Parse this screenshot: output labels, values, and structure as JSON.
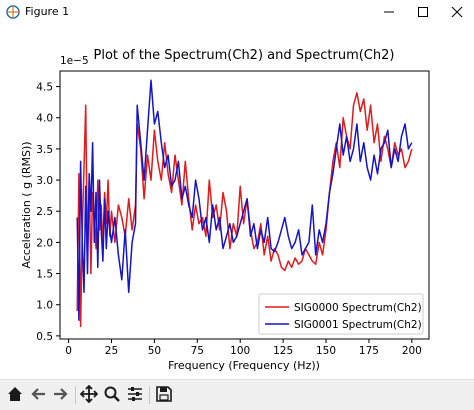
{
  "window": {
    "title": "Figure 1",
    "minimize_icon": "minimize-icon",
    "maximize_icon": "maximize-icon",
    "close_icon": "close-icon"
  },
  "toolbar": {
    "buttons": [
      {
        "name": "home-icon"
      },
      {
        "name": "back-arrow-icon"
      },
      {
        "name": "forward-arrow-icon"
      },
      {
        "name": "pan-icon"
      },
      {
        "name": "zoom-icon"
      },
      {
        "name": "configure-subplots-icon"
      },
      {
        "name": "save-icon"
      }
    ]
  },
  "chart_data": {
    "type": "line",
    "title": "Plot of the Spectrum(Ch2) and Spectrum(Ch2)",
    "xlabel": "Frequency (Frequency (Hz))",
    "ylabel": "Acceleration ( g (RMS))",
    "offset_label": "1e−5",
    "xlim": [
      -5,
      210
    ],
    "ylim": [
      0.45,
      4.75
    ],
    "y_scale_factor": "1e-5",
    "xticks": [
      0,
      25,
      50,
      75,
      100,
      125,
      150,
      175,
      200
    ],
    "yticks": [
      0.5,
      1.0,
      1.5,
      2.0,
      2.5,
      3.0,
      3.5,
      4.0,
      4.5
    ],
    "ytick_labels": [
      "0.5",
      "1.0",
      "1.5",
      "2.0",
      "2.5",
      "3.0",
      "3.5",
      "4.0",
      "4.5"
    ],
    "grid": false,
    "legend_position": "lower-right",
    "series": [
      {
        "name": "SIG0000 Spectrum(Ch2)",
        "color": "#e31a1c",
        "x": [
          5,
          6,
          7,
          8,
          9,
          10,
          11,
          12,
          13,
          14,
          15,
          16,
          17,
          18,
          19,
          20,
          21,
          22,
          23,
          24,
          25,
          27,
          29,
          31,
          33,
          35,
          37,
          39,
          40,
          42,
          44,
          46,
          48,
          50,
          52,
          54,
          56,
          58,
          60,
          62,
          64,
          66,
          68,
          70,
          72,
          74,
          76,
          78,
          80,
          82,
          84,
          86,
          88,
          90,
          92,
          94,
          96,
          98,
          100,
          102,
          104,
          106,
          108,
          110,
          112,
          114,
          116,
          118,
          120,
          122,
          124,
          126,
          128,
          130,
          132,
          134,
          136,
          138,
          140,
          142,
          144,
          146,
          148,
          150,
          152,
          154,
          156,
          158,
          160,
          162,
          164,
          166,
          168,
          170,
          172,
          174,
          176,
          178,
          180,
          182,
          184,
          186,
          188,
          190,
          192,
          194,
          196,
          198,
          200
        ],
        "y": [
          0.9,
          3.1,
          0.65,
          2.2,
          3.2,
          4.2,
          1.8,
          3.0,
          1.5,
          2.8,
          2.4,
          1.9,
          3.0,
          2.2,
          2.6,
          1.9,
          2.8,
          2.3,
          3.0,
          2.1,
          2.5,
          2.0,
          2.6,
          2.4,
          2.1,
          2.7,
          2.2,
          2.6,
          3.9,
          3.5,
          2.7,
          3.4,
          3.0,
          3.8,
          3.3,
          3.0,
          3.6,
          3.1,
          2.8,
          3.4,
          3.0,
          2.6,
          3.3,
          2.7,
          2.2,
          2.6,
          2.3,
          2.4,
          2.1,
          3.0,
          2.4,
          2.6,
          2.2,
          2.8,
          2.5,
          1.9,
          2.3,
          2.1,
          2.9,
          2.3,
          2.7,
          2.2,
          1.9,
          2.0,
          2.3,
          1.8,
          2.1,
          1.7,
          1.9,
          1.8,
          1.6,
          1.55,
          1.7,
          1.6,
          1.75,
          1.65,
          1.7,
          1.9,
          1.8,
          1.7,
          1.65,
          2.0,
          1.8,
          2.2,
          2.8,
          3.3,
          3.6,
          3.2,
          4.0,
          3.7,
          3.5,
          4.2,
          4.4,
          4.1,
          4.3,
          3.8,
          4.2,
          3.6,
          3.9,
          3.3,
          3.7,
          3.5,
          3.2,
          3.6,
          3.4,
          3.5,
          3.2,
          3.3,
          3.5
        ]
      },
      {
        "name": "SIG0001 Spectrum(Ch2)",
        "color": "#1414c8",
        "x": [
          5,
          6,
          7,
          8,
          9,
          10,
          11,
          12,
          13,
          14,
          15,
          16,
          17,
          18,
          19,
          20,
          21,
          22,
          23,
          24,
          25,
          27,
          29,
          31,
          33,
          35,
          37,
          39,
          40,
          42,
          44,
          46,
          48,
          50,
          52,
          54,
          56,
          58,
          60,
          62,
          64,
          66,
          68,
          70,
          72,
          74,
          76,
          78,
          80,
          82,
          84,
          86,
          88,
          90,
          92,
          94,
          96,
          98,
          100,
          102,
          104,
          106,
          108,
          110,
          112,
          114,
          116,
          118,
          120,
          122,
          124,
          126,
          128,
          130,
          132,
          134,
          136,
          138,
          140,
          142,
          144,
          146,
          148,
          150,
          152,
          154,
          156,
          158,
          160,
          162,
          164,
          166,
          168,
          170,
          172,
          174,
          176,
          178,
          180,
          182,
          184,
          186,
          188,
          190,
          192,
          194,
          196,
          198,
          200
        ],
        "y": [
          2.4,
          0.75,
          3.3,
          2.0,
          1.2,
          2.9,
          1.5,
          3.1,
          2.5,
          3.6,
          2.0,
          2.8,
          1.6,
          3.0,
          2.2,
          1.7,
          2.7,
          1.9,
          2.5,
          2.2,
          2.0,
          2.4,
          1.8,
          1.4,
          2.2,
          1.2,
          2.0,
          2.3,
          4.2,
          3.6,
          3.0,
          3.8,
          4.6,
          3.9,
          4.1,
          3.6,
          3.2,
          3.4,
          2.9,
          3.0,
          3.3,
          2.7,
          2.9,
          2.6,
          2.4,
          3.0,
          2.7,
          2.2,
          2.4,
          2.0,
          2.6,
          2.2,
          2.4,
          1.9,
          2.1,
          2.3,
          2.0,
          2.1,
          2.3,
          2.5,
          2.7,
          2.1,
          2.3,
          1.9,
          2.2,
          2.0,
          2.4,
          1.9,
          1.85,
          2.0,
          2.2,
          2.4,
          2.1,
          1.9,
          2.0,
          2.2,
          1.8,
          1.9,
          2.0,
          2.6,
          1.8,
          2.2,
          2.0,
          2.3,
          2.8,
          3.1,
          3.5,
          3.9,
          3.4,
          3.7,
          3.3,
          3.5,
          3.9,
          3.3,
          3.6,
          3.2,
          3.0,
          3.4,
          3.1,
          3.5,
          3.6,
          3.8,
          3.2,
          3.5,
          3.3,
          3.7,
          3.9,
          3.5,
          3.6
        ]
      }
    ]
  }
}
